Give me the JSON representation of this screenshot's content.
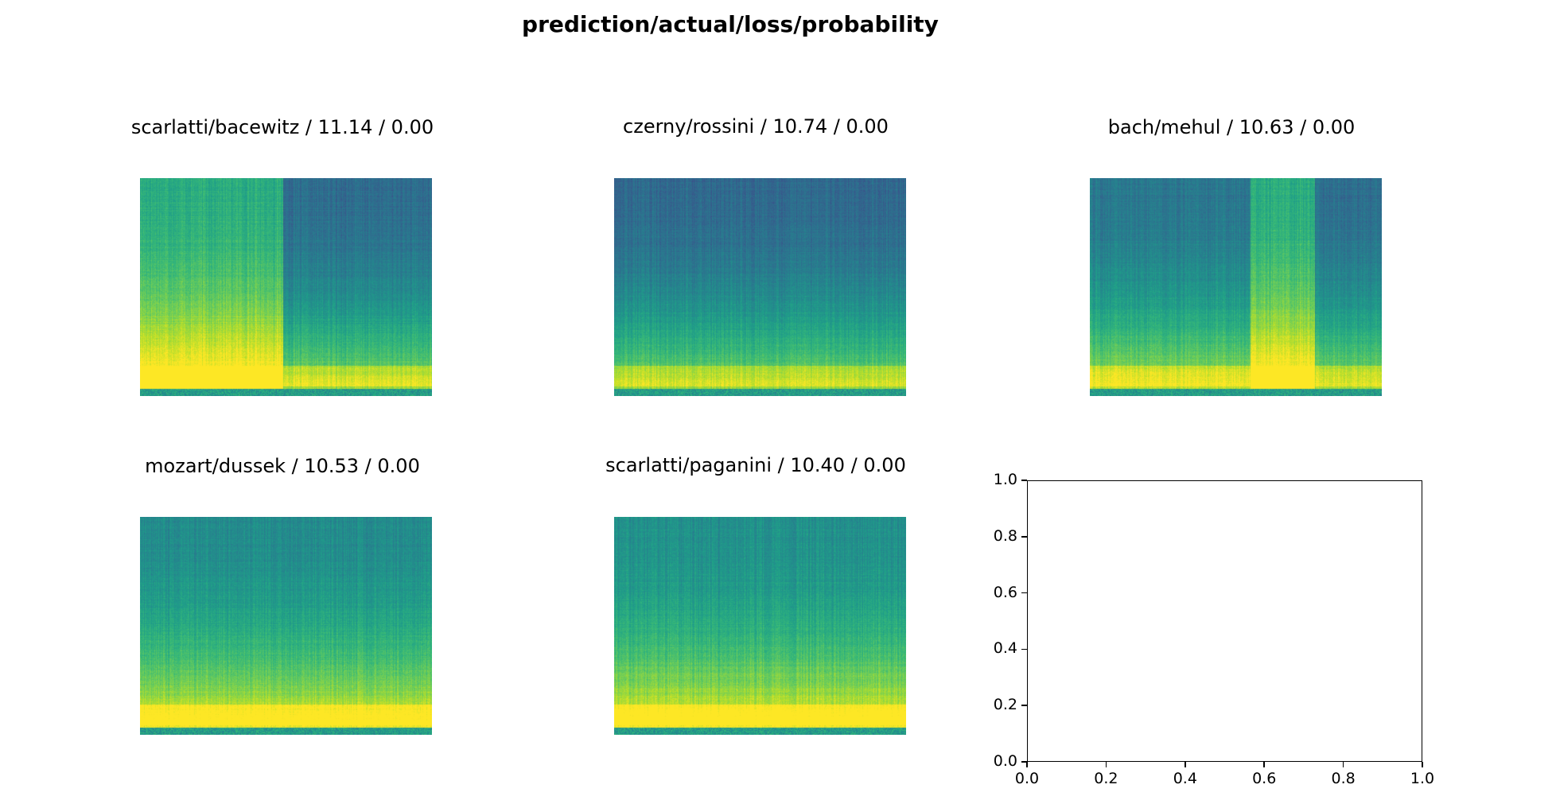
{
  "suptitle": "prediction/actual/loss/probability",
  "chart_data": [
    {
      "type": "heatmap",
      "subtype": "spectrogram",
      "title": "scarlatti/bacewitz / 11.14 / 0.00",
      "prediction": "scarlatti",
      "actual": "bacewitz",
      "loss": 11.14,
      "probability": 0.0,
      "colormap": "viridis",
      "axes": "off",
      "segments": [
        {
          "from": 0.0,
          "to": 0.49,
          "level": 0.62
        },
        {
          "from": 0.49,
          "to": 1.0,
          "level": 0.35
        }
      ]
    },
    {
      "type": "heatmap",
      "subtype": "spectrogram",
      "title": "czerny/rossini / 10.74 / 0.00",
      "prediction": "czerny",
      "actual": "rossini",
      "loss": 10.74,
      "probability": 0.0,
      "colormap": "viridis",
      "axes": "off",
      "segments": [
        {
          "from": 0.0,
          "to": 1.0,
          "level": 0.34
        }
      ]
    },
    {
      "type": "heatmap",
      "subtype": "spectrogram",
      "title": "bach/mehul / 10.63 / 0.00",
      "prediction": "bach",
      "actual": "mehul",
      "loss": 10.63,
      "probability": 0.0,
      "colormap": "viridis",
      "axes": "off",
      "segments": [
        {
          "from": 0.0,
          "to": 0.55,
          "level": 0.4
        },
        {
          "from": 0.55,
          "to": 0.77,
          "level": 0.62
        },
        {
          "from": 0.77,
          "to": 1.0,
          "level": 0.36
        }
      ]
    },
    {
      "type": "heatmap",
      "subtype": "spectrogram",
      "title": "mozart/dussek / 10.53 / 0.00",
      "prediction": "mozart",
      "actual": "dussek",
      "loss": 10.53,
      "probability": 0.0,
      "colormap": "viridis",
      "axes": "off",
      "segments": [
        {
          "from": 0.0,
          "to": 1.0,
          "level": 0.48
        }
      ]
    },
    {
      "type": "heatmap",
      "subtype": "spectrogram",
      "title": "scarlatti/paganini / 10.40 / 0.00",
      "prediction": "scarlatti",
      "actual": "paganini",
      "loss": 10.4,
      "probability": 0.0,
      "colormap": "viridis",
      "axes": "off",
      "segments": [
        {
          "from": 0.0,
          "to": 1.0,
          "level": 0.5
        }
      ]
    },
    {
      "type": "empty",
      "title": "",
      "xlim": [
        0.0,
        1.0
      ],
      "ylim": [
        0.0,
        1.0
      ],
      "xticks": [
        "0.0",
        "0.2",
        "0.4",
        "0.6",
        "0.8",
        "1.0"
      ],
      "yticks": [
        "0.0",
        "0.2",
        "0.4",
        "0.6",
        "0.8",
        "1.0"
      ]
    }
  ]
}
